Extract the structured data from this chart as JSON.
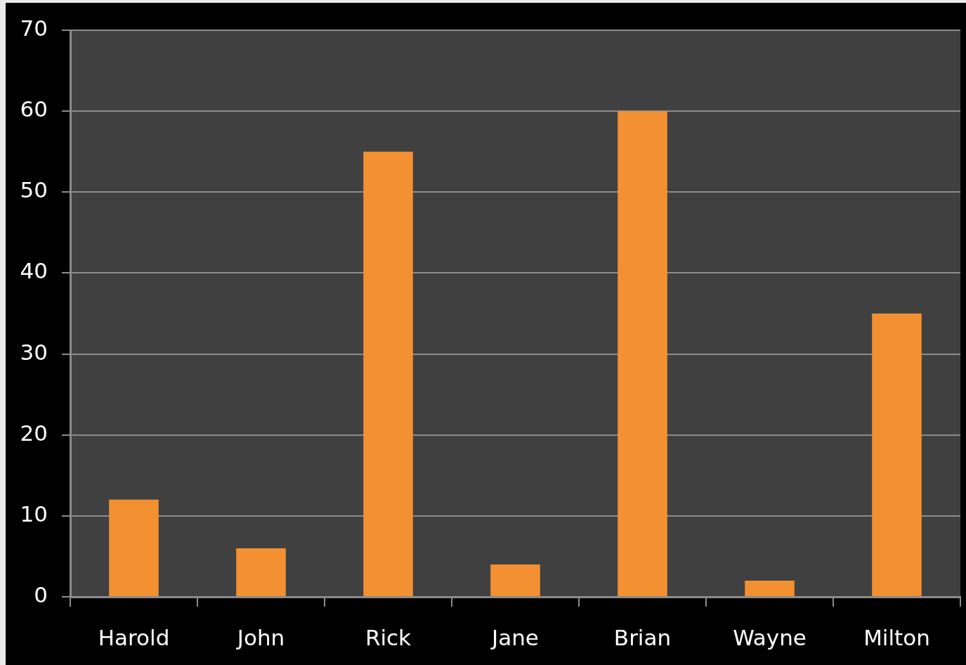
{
  "chart_data": {
    "type": "bar",
    "categories": [
      "Harold",
      "John",
      "Rick",
      "Jane",
      "Brian",
      "Wayne",
      "Milton"
    ],
    "values": [
      12,
      6,
      55,
      4,
      60,
      2,
      35
    ],
    "color": "#f39031",
    "ylim": [
      0,
      70
    ],
    "yticks": [
      0,
      10,
      20,
      30,
      40,
      50,
      60,
      70
    ],
    "grid": "y"
  }
}
